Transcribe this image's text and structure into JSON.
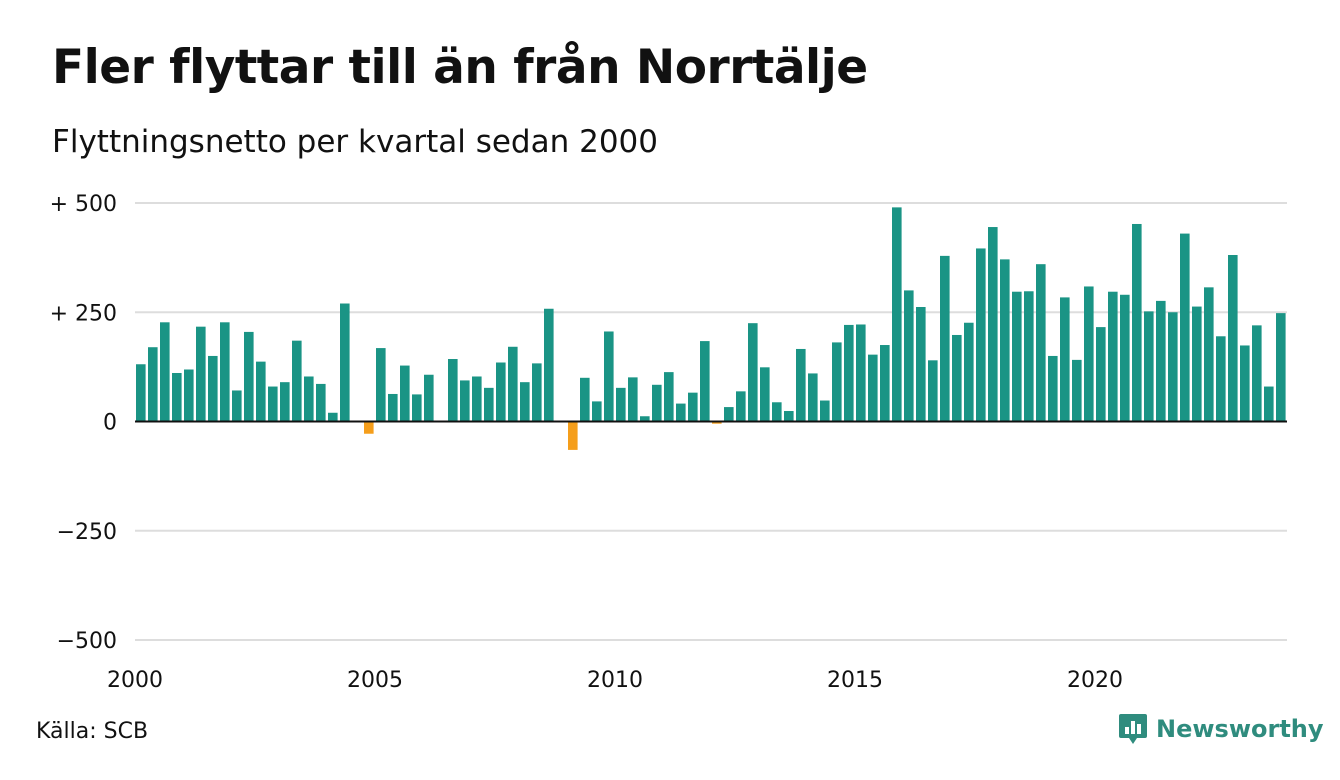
{
  "title": "Fler flyttar till än från Norrtälje",
  "subtitle": "Flyttningsnetto per kvartal sedan 2000",
  "source": "Källa: SCB",
  "brand": {
    "name": "Newsworthy",
    "icon": "newsworthy-logo-icon"
  },
  "colors": {
    "positive": "#1a9485",
    "negative": "#f59e1b",
    "grid": "#dddddd",
    "zero": "#111111",
    "brand": "#2f8c7e"
  },
  "chart_data": {
    "type": "bar",
    "ylim": [
      -500,
      500
    ],
    "yticks": [
      {
        "value": 500,
        "label": "+ 500"
      },
      {
        "value": 250,
        "label": "+ 250"
      },
      {
        "value": 0,
        "label": "0"
      },
      {
        "value": -250,
        "label": "−250"
      },
      {
        "value": -500,
        "label": "−500"
      }
    ],
    "xticks": [
      {
        "year": 2000,
        "label": "2000"
      },
      {
        "year": 2005,
        "label": "2005"
      },
      {
        "year": 2010,
        "label": "2010"
      },
      {
        "year": 2015,
        "label": "2015"
      },
      {
        "year": 2020,
        "label": "2020"
      }
    ],
    "start_year": 2000,
    "grid": true,
    "legend": "none",
    "values": [
      131,
      170,
      227,
      111,
      119,
      217,
      150,
      227,
      71,
      205,
      137,
      80,
      90,
      185,
      103,
      86,
      20,
      270,
      0,
      -28,
      168,
      63,
      128,
      62,
      107,
      0,
      143,
      94,
      103,
      77,
      135,
      171,
      90,
      133,
      258,
      0,
      -65,
      100,
      46,
      206,
      77,
      101,
      12,
      84,
      113,
      41,
      66,
      184,
      -5,
      33,
      69,
      225,
      124,
      44,
      24,
      166,
      110,
      48,
      181,
      221,
      222,
      153,
      175,
      490,
      300,
      262,
      140,
      379,
      198,
      226,
      396,
      445,
      371,
      297,
      298,
      360,
      150,
      284,
      141,
      309,
      216,
      297,
      290,
      452,
      252,
      276,
      250,
      430,
      263,
      307,
      195,
      381,
      174,
      220,
      80,
      248
    ]
  }
}
